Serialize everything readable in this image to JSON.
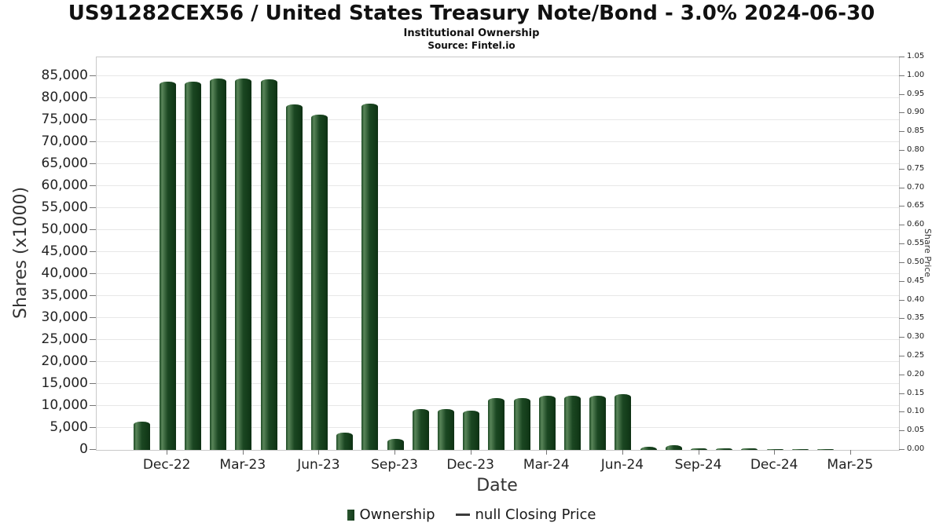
{
  "header": {
    "title": "US91282CEX56 / United States Treasury Note/Bond - 3.0% 2024-06-30",
    "subtitle": "Institutional Ownership",
    "source": "Source: Fintel.io"
  },
  "chart_data": {
    "type": "bar",
    "title": "US91282CEX56 / United States Treasury Note/Bond - 3.0% 2024-06-30",
    "subtitle": "Institutional Ownership",
    "source": "Source: Fintel.io",
    "xlabel": "Date",
    "ylabel_left": "Shares (x1000)",
    "ylabel_right": "Share Price",
    "values_unit": "x1000 shares",
    "categories": [
      "Nov-22",
      "Dec-22",
      "Jan-23",
      "Feb-23",
      "Mar-23",
      "Apr-23",
      "May-23",
      "Jun-23",
      "Jul-23",
      "Aug-23",
      "Sep-23",
      "Oct-23",
      "Nov-23",
      "Dec-23",
      "Jan-24",
      "Feb-24",
      "Mar-24",
      "Apr-24",
      "May-24",
      "Jun-24",
      "Jul-24",
      "Aug-24",
      "Sep-24",
      "Oct-24",
      "Nov-24",
      "Dec-24",
      "Jan-25",
      "Feb-25"
    ],
    "values": [
      6500,
      83700,
      83700,
      84500,
      84500,
      84300,
      78500,
      76300,
      4000,
      78800,
      2500,
      9300,
      9300,
      9000,
      11700,
      11700,
      12300,
      12400,
      12400,
      12600,
      800,
      1000,
      400,
      400,
      300,
      150,
      150,
      150
    ],
    "x_tick_labels": [
      "Dec-22",
      "Mar-23",
      "Jun-23",
      "Sep-23",
      "Dec-23",
      "Mar-24",
      "Jun-24",
      "Sep-24",
      "Dec-24",
      "Mar-25"
    ],
    "x_tick_indices": [
      1,
      4,
      7,
      10,
      13,
      16,
      19,
      22,
      25,
      28
    ],
    "y_left_ticks": [
      0,
      5000,
      10000,
      15000,
      20000,
      25000,
      30000,
      35000,
      40000,
      45000,
      50000,
      55000,
      60000,
      65000,
      70000,
      75000,
      80000,
      85000
    ],
    "y_right_tick_labels": [
      "0.00",
      "0.05",
      "0.10",
      "0.15",
      "0.20",
      "0.25",
      "0.30",
      "0.35",
      "0.40",
      "0.45",
      "0.50",
      "0.55",
      "0.60",
      "0.65",
      "0.70",
      "0.75",
      "0.80",
      "0.85",
      "0.90",
      "0.95",
      "1.00",
      "1.05"
    ],
    "ylim_left": [
      0,
      89250
    ],
    "ylim_right": [
      0,
      1.05
    ],
    "xlim": [
      -1.8,
      29.9
    ],
    "bar_color": "#1d4a24",
    "grid": "horizontal",
    "legend_position": "bottom",
    "legend": [
      {
        "label": "Ownership",
        "type": "square",
        "color": "#1d4a24"
      },
      {
        "label": "null Closing Price",
        "type": "line",
        "color": "#3c3c3c"
      }
    ]
  }
}
